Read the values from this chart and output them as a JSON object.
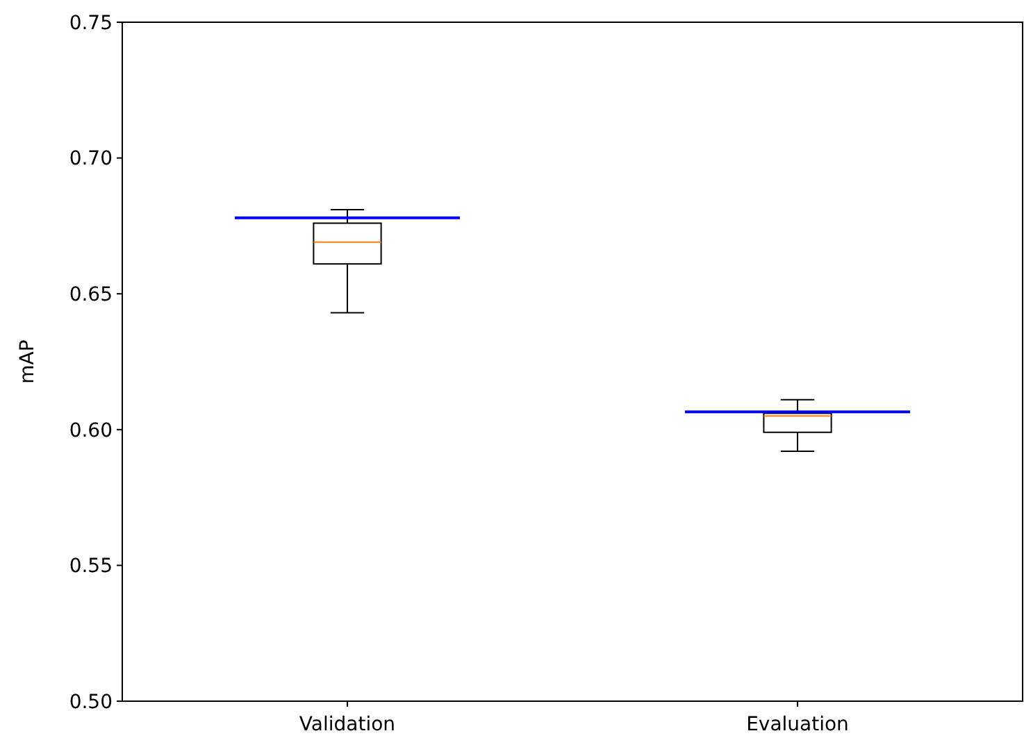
{
  "chart_data": {
    "type": "box",
    "ylabel": "mAP",
    "categories": [
      "Validation",
      "Evaluation"
    ],
    "boxes": [
      {
        "low": 0.643,
        "q1": 0.661,
        "median": 0.669,
        "q3": 0.676,
        "high": 0.681
      },
      {
        "low": 0.592,
        "q1": 0.599,
        "median": 0.605,
        "q3": 0.606,
        "high": 0.611
      }
    ],
    "ref_lines": [
      {
        "axis": "y",
        "value": 0.678,
        "color": "#0000ff"
      },
      {
        "axis": "y",
        "value": 0.6065,
        "color": "#0000ff"
      }
    ],
    "ylim": [
      0.5,
      0.75
    ],
    "yticks": [
      {
        "value": 0.5,
        "label": "0.50"
      },
      {
        "value": 0.55,
        "label": "0.55"
      },
      {
        "value": 0.6,
        "label": "0.60"
      },
      {
        "value": 0.65,
        "label": "0.65"
      },
      {
        "value": 0.7,
        "label": "0.70"
      },
      {
        "value": 0.75,
        "label": "0.75"
      }
    ],
    "grid": false
  }
}
